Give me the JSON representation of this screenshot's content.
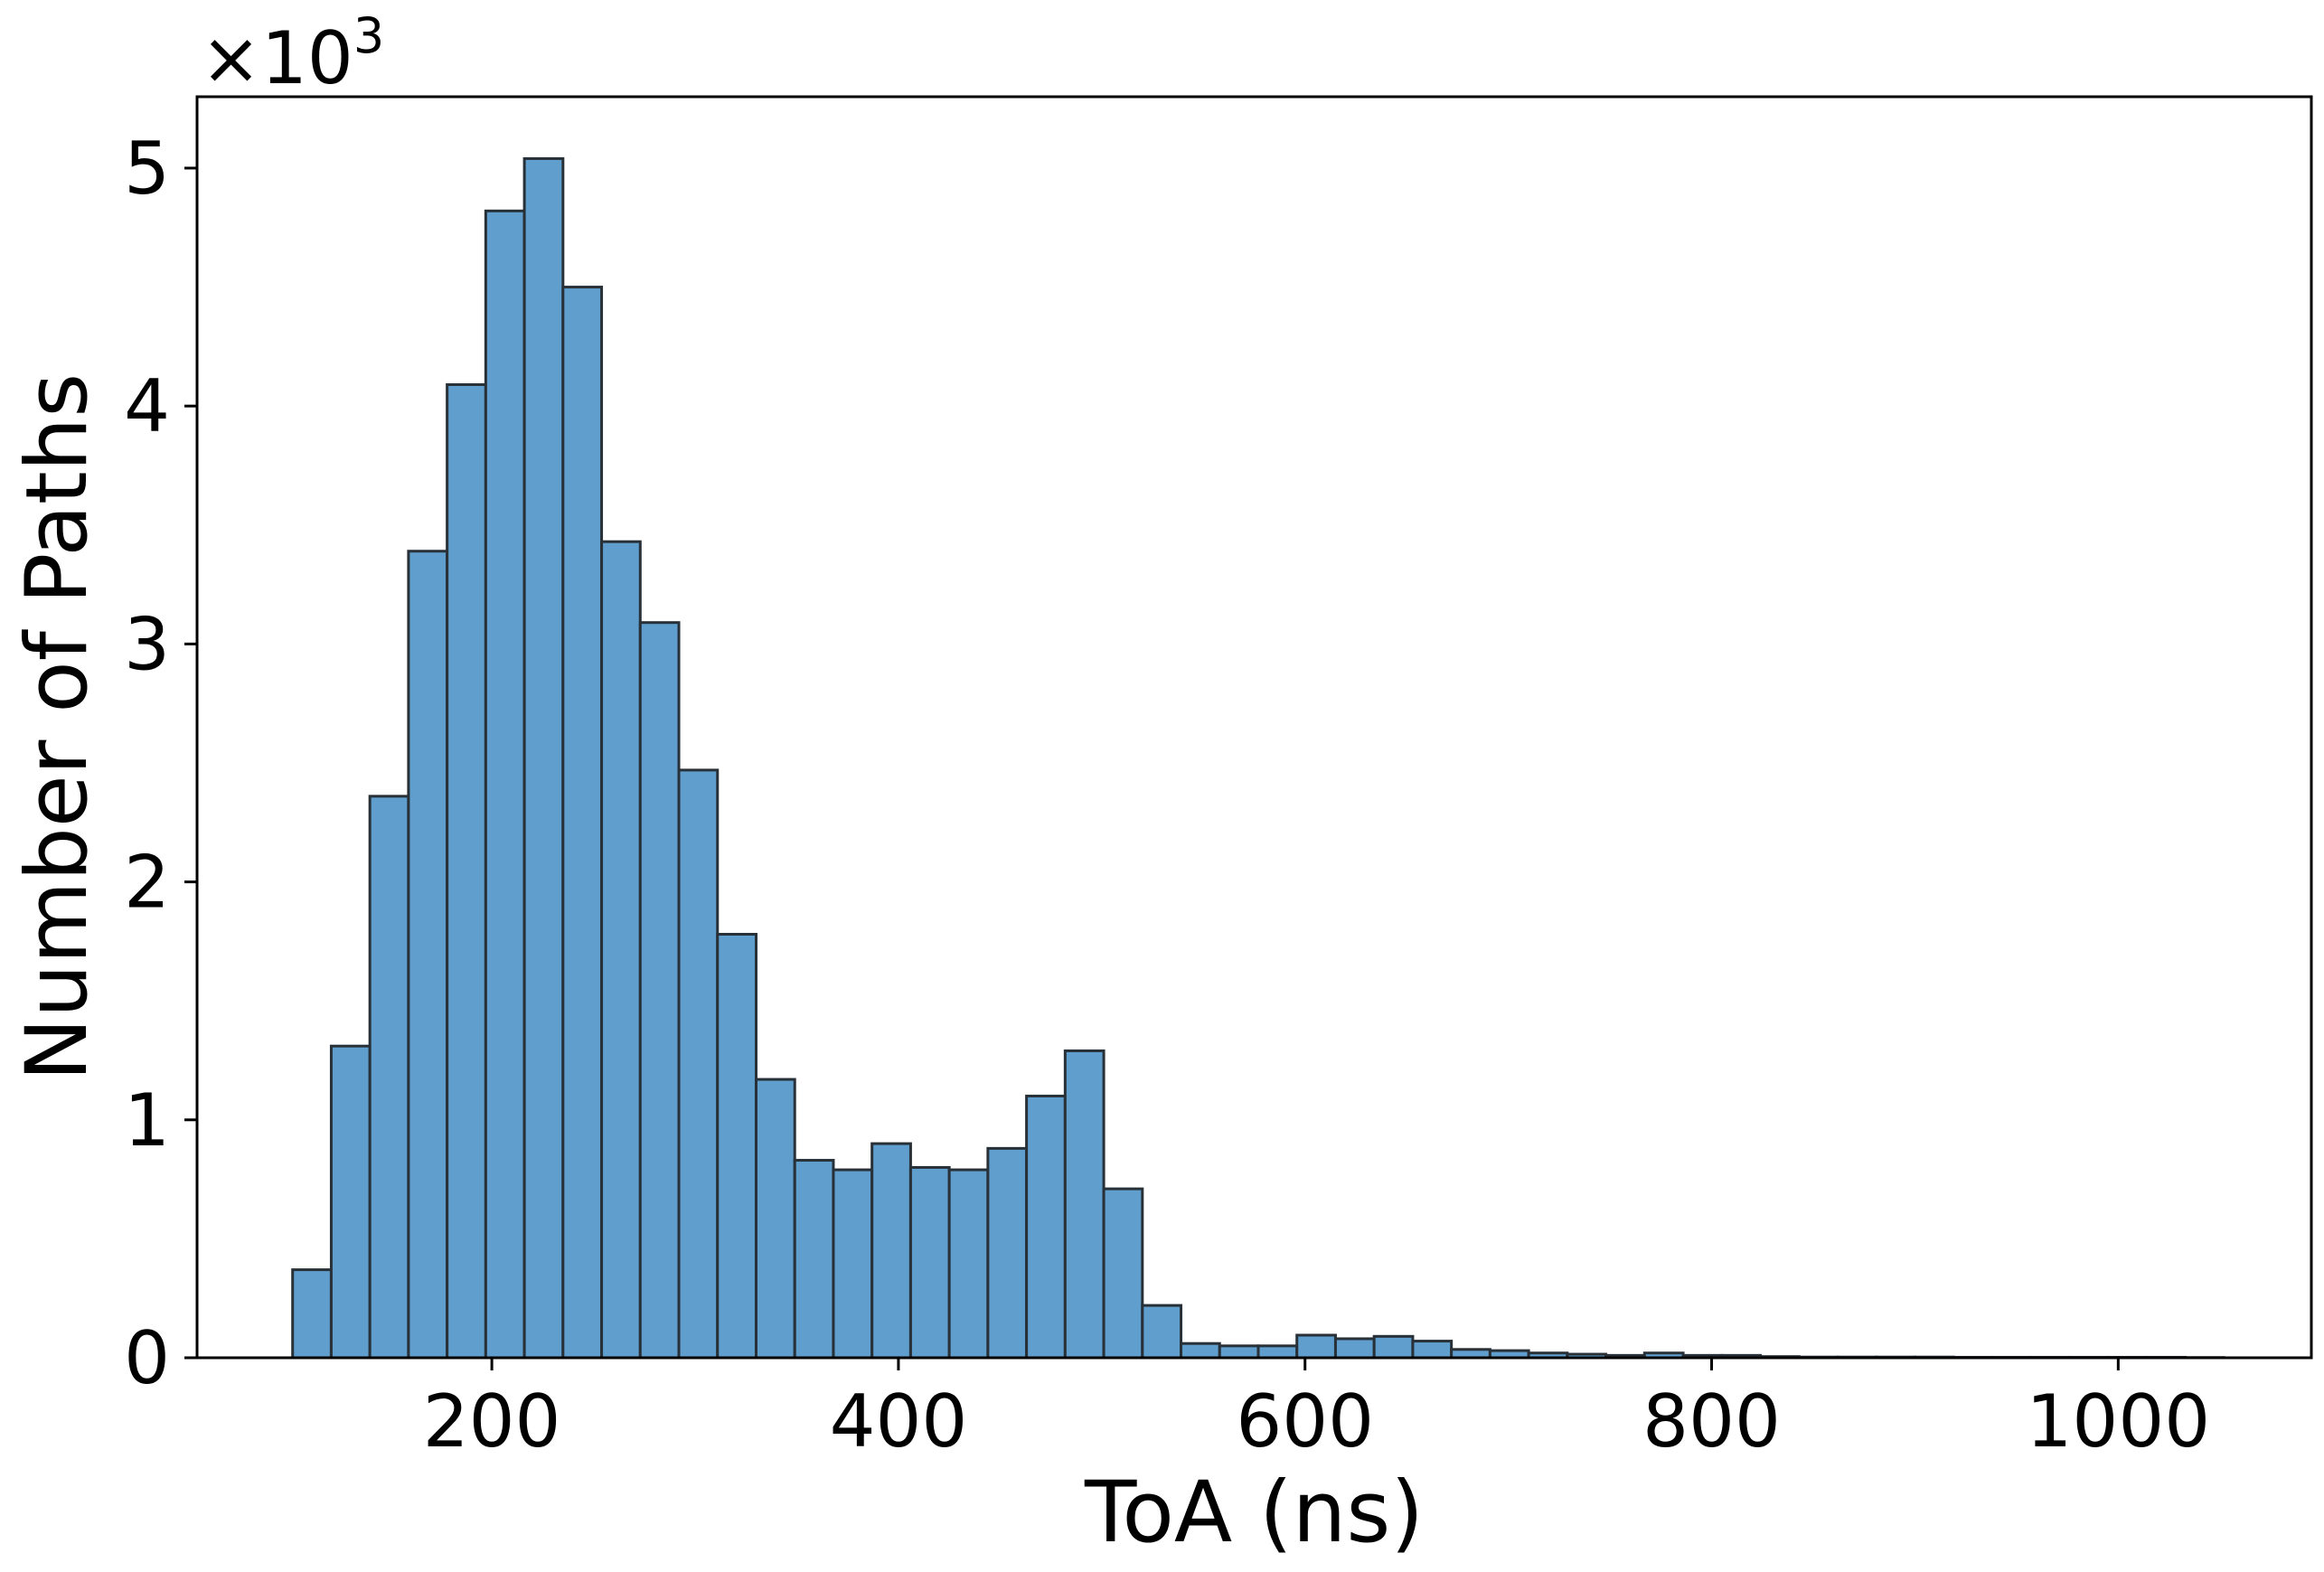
{
  "chart_data": {
    "type": "bar",
    "subtype": "histogram",
    "xlabel": "ToA (ns)",
    "ylabel": "Number of Paths",
    "y_offset_text": "×10",
    "y_offset_exponent": "3",
    "xlim": [
      55,
      1095
    ],
    "ylim": [
      0,
      5.3
    ],
    "xticks": [
      200,
      400,
      600,
      800,
      1000
    ],
    "xtick_labels": [
      "200",
      "400",
      "600",
      "800",
      "1000"
    ],
    "yticks": [
      0,
      1,
      2,
      3,
      4,
      5
    ],
    "ytick_labels": [
      "0",
      "1",
      "2",
      "3",
      "4",
      "5"
    ],
    "y_units": "thousands of paths",
    "grid": false,
    "bar_color": "#5f9ecd",
    "edge_color": "#283038",
    "bin_width": 19,
    "bin_edges_start": 102,
    "values": [
      0.37,
      1.31,
      2.36,
      3.39,
      4.09,
      4.82,
      5.04,
      4.5,
      3.43,
      3.09,
      2.47,
      1.78,
      1.17,
      0.83,
      0.79,
      0.9,
      0.8,
      0.79,
      0.88,
      1.1,
      1.29,
      0.71,
      0.22,
      0.06,
      0.05,
      0.05,
      0.095,
      0.08,
      0.09,
      0.07,
      0.035,
      0.03,
      0.02,
      0.015,
      0.01,
      0.02,
      0.01,
      0.01,
      0.005,
      0.003,
      0.003,
      0.003,
      0.003,
      0.002,
      0.002,
      0.002,
      0.002,
      0.002,
      0.002,
      0.001
    ]
  }
}
